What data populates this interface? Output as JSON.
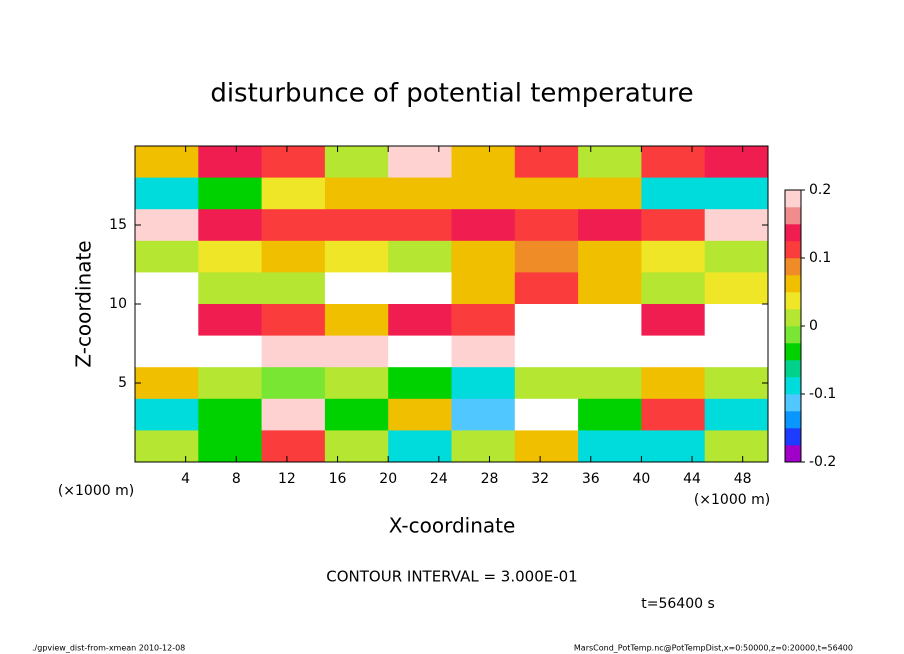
{
  "chart_data": {
    "type": "heatmap",
    "title": "disturbunce of potential temperature",
    "x_label": "X-coordinate",
    "y_label": "Z-coordinate",
    "x_unit": "(×1000 m)",
    "y_unit": "(×1000 m)",
    "xlim": [
      0,
      50
    ],
    "ylim": [
      0,
      20
    ],
    "xticks": [
      4,
      8,
      12,
      16,
      20,
      24,
      28,
      32,
      36,
      40,
      44,
      48
    ],
    "yticks": [
      5,
      10,
      15
    ],
    "x": [
      2.5,
      7.5,
      12.5,
      17.5,
      22.5,
      27.5,
      32.5,
      37.5,
      42.5,
      47.5
    ],
    "y": [
      19,
      17,
      15,
      13,
      11,
      9,
      7,
      5,
      3,
      1
    ],
    "values": [
      [
        0.05,
        0.15,
        0.1,
        0.0,
        0.2,
        0.05,
        0.1,
        0.0,
        0.1,
        0.15
      ],
      [
        -0.08,
        -0.05,
        0.03,
        0.05,
        0.05,
        0.05,
        0.07,
        0.05,
        -0.1,
        -0.08
      ],
      [
        0.18,
        0.15,
        0.12,
        0.1,
        0.12,
        0.15,
        0.12,
        0.15,
        0.1,
        0.18
      ],
      [
        0.02,
        0.03,
        0.05,
        0.04,
        0.0,
        0.05,
        0.08,
        0.05,
        0.03,
        0.02
      ],
      [
        0.3,
        0.0,
        0.02,
        0.3,
        0.3,
        0.05,
        0.1,
        0.05,
        0.02,
        0.03
      ],
      [
        0.3,
        0.15,
        0.1,
        0.05,
        0.15,
        0.1,
        0.3,
        0.3,
        0.15,
        0.3
      ],
      [
        0.3,
        0.3,
        0.18,
        0.2,
        0.3,
        0.18,
        0.3,
        0.3,
        0.3,
        0.3
      ],
      [
        0.05,
        0.02,
        -0.02,
        0.0,
        -0.05,
        -0.08,
        0.0,
        0.02,
        0.05,
        0.0
      ],
      [
        -0.1,
        -0.05,
        0.2,
        -0.05,
        0.05,
        -0.12,
        0.25,
        -0.05,
        0.1,
        -0.1
      ],
      [
        0.0,
        -0.05,
        0.1,
        0.02,
        -0.08,
        0.0,
        0.05,
        -0.1,
        -0.08,
        0.02
      ]
    ],
    "clim": [
      -0.2,
      0.2
    ],
    "cticks": [
      -0.2,
      -0.1,
      0,
      0.1,
      0.2
    ],
    "colors": [
      "#a000c8",
      "#1e3cff",
      "#0a96ff",
      "#50c8ff",
      "#00dcdc",
      "#00d28c",
      "#00d200",
      "#78e632",
      "#b4e632",
      "#f0e628",
      "#f0c000",
      "#f08c28",
      "#fa3c3c",
      "#f01e50",
      "#f08c8c",
      "#ffd2d2"
    ],
    "out_of_range_color": "#ffffff",
    "contour_note": "CONTOUR INTERVAL = 3.000E-01",
    "time_note": "t=56400 s",
    "footer_left": "./gpview_dist-from-xmean  2010-12-08",
    "footer_right": "MarsCond_PotTemp.nc@PotTempDist,x=0:50000,z=0:20000,t=56400"
  }
}
